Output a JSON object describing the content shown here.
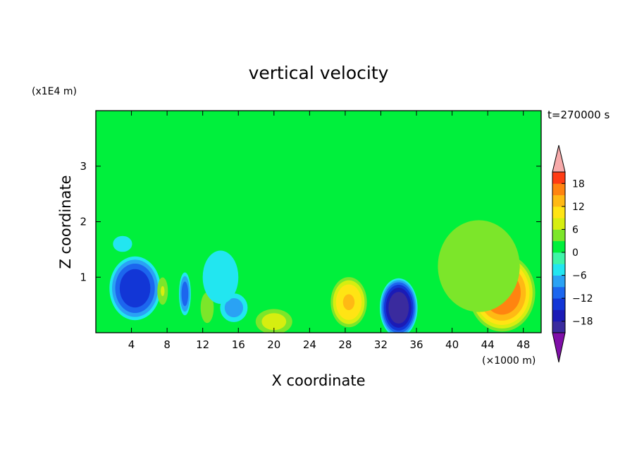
{
  "chart_data": {
    "type": "heatmap",
    "title": "vertical velocity",
    "xlabel": "X coordinate",
    "ylabel": "Z coordinate",
    "x_unit": "(×1000 m)",
    "y_unit": "(x1E4 m)",
    "time_label": "t=270000 s",
    "xlim": [
      0,
      50
    ],
    "ylim": [
      0,
      4
    ],
    "x_ticks": [
      4,
      8,
      12,
      16,
      20,
      24,
      28,
      32,
      36,
      40,
      44,
      48
    ],
    "y_ticks": [
      1,
      2,
      3
    ],
    "grid": false,
    "legend": "colorbar-right",
    "colorbar": {
      "min": -21,
      "max": 21,
      "tick_values": [
        18,
        12,
        6,
        0,
        -6,
        -12,
        -18
      ],
      "tick_labels": [
        "18",
        "12",
        "6",
        "0",
        "−6",
        "−12",
        "−18"
      ],
      "levels": [
        -21,
        -18,
        -15,
        -12,
        -9,
        -6,
        -3,
        0,
        3,
        6,
        9,
        12,
        15,
        18,
        21
      ],
      "colors": [
        "#7f0fa8",
        "#3a2b9e",
        "#1b1bb6",
        "#1236d6",
        "#1c66ee",
        "#2aa2f4",
        "#22e6f0",
        "#3ef5a8",
        "#00f03c",
        "#7ce62a",
        "#d6ee10",
        "#ffe414",
        "#ffb914",
        "#ff8410",
        "#ff3c14",
        "#f21e28",
        "#f7aaaa"
      ],
      "under_color": "#7f0fa8",
      "over_color": "#f7aaaa"
    },
    "background_value": 0.5,
    "features": [
      {
        "x": 4.4,
        "z": 0.8,
        "amplitude": -14,
        "width_x": 2.5,
        "width_z": 0.5
      },
      {
        "x": 10.0,
        "z": 0.7,
        "amplitude": -10,
        "width_x": 0.6,
        "width_z": 0.35
      },
      {
        "x": 7.5,
        "z": 0.75,
        "amplitude": 6,
        "width_x": 0.6,
        "width_z": 0.25
      },
      {
        "x": 12.5,
        "z": 0.45,
        "amplitude": 5,
        "width_x": 0.8,
        "width_z": 0.3
      },
      {
        "x": 15.5,
        "z": 0.45,
        "amplitude": -7,
        "width_x": 1.5,
        "width_z": 0.25
      },
      {
        "x": 14.0,
        "z": 1.0,
        "amplitude": -4,
        "width_x": 2.5,
        "width_z": 0.6
      },
      {
        "x": 20.0,
        "z": 0.2,
        "amplitude": 7,
        "width_x": 2.0,
        "width_z": 0.22
      },
      {
        "x": 28.4,
        "z": 0.55,
        "amplitude": 12,
        "width_x": 1.8,
        "width_z": 0.4
      },
      {
        "x": 34.0,
        "z": 0.45,
        "amplitude": -20,
        "width_x": 1.8,
        "width_z": 0.45
      },
      {
        "x": 45.6,
        "z": 0.72,
        "amplitude": 17,
        "width_x": 3.2,
        "width_z": 0.6
      },
      {
        "x": 43.0,
        "z": 1.2,
        "amplitude": 5,
        "width_x": 5.0,
        "width_z": 0.9
      },
      {
        "x": 3.0,
        "z": 1.6,
        "amplitude": -3,
        "width_x": 3.0,
        "width_z": 0.4
      },
      {
        "x": 18.0,
        "z": 1.6,
        "amplitude": -2,
        "width_x": 4.0,
        "width_z": 0.5
      }
    ]
  }
}
